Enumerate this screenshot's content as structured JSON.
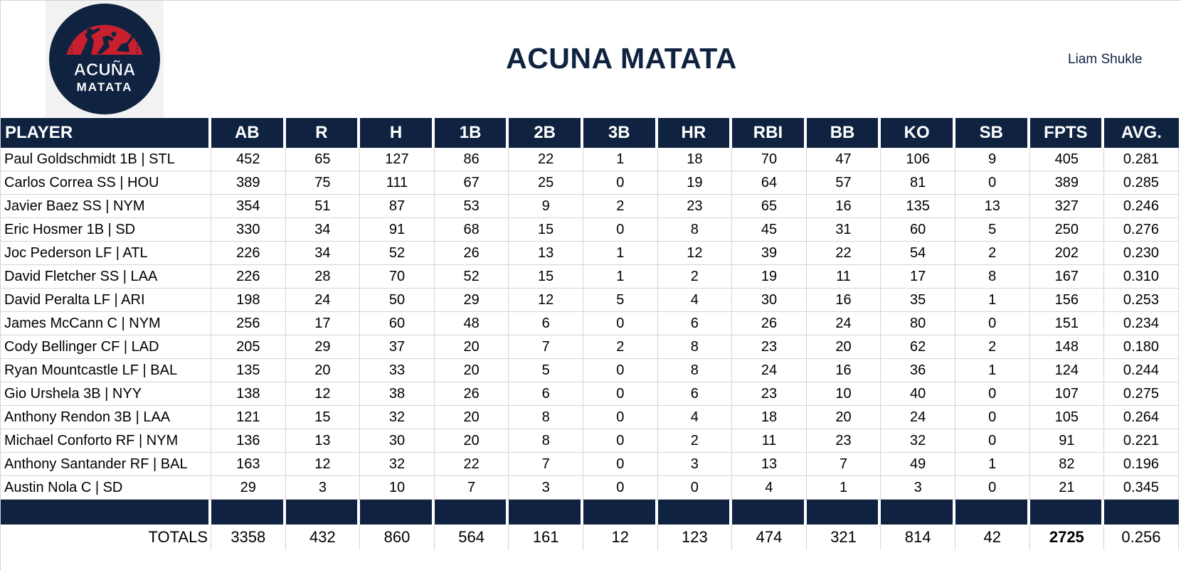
{
  "header": {
    "logo_text_line1": "ACUÑA",
    "logo_text_line2": "MATATA",
    "title": "ACUNA MATATA",
    "owner": "Liam Shukle"
  },
  "colors": {
    "navy": "#0f2340",
    "red": "#c8202f",
    "grid": "#d4d4d4"
  },
  "table": {
    "columns": [
      "PLAYER",
      "AB",
      "R",
      "H",
      "1B",
      "2B",
      "3B",
      "HR",
      "RBI",
      "BB",
      "KO",
      "SB",
      "FPTS",
      "AVG."
    ],
    "rows": [
      {
        "player": "Paul Goldschmidt 1B | STL",
        "AB": "452",
        "R": "65",
        "H": "127",
        "1B": "86",
        "2B": "22",
        "3B": "1",
        "HR": "18",
        "RBI": "70",
        "BB": "47",
        "KO": "106",
        "SB": "9",
        "FPTS": "405",
        "AVG": "0.281"
      },
      {
        "player": "Carlos Correa SS | HOU",
        "AB": "389",
        "R": "75",
        "H": "111",
        "1B": "67",
        "2B": "25",
        "3B": "0",
        "HR": "19",
        "RBI": "64",
        "BB": "57",
        "KO": "81",
        "SB": "0",
        "FPTS": "389",
        "AVG": "0.285"
      },
      {
        "player": "Javier Baez SS | NYM",
        "AB": "354",
        "R": "51",
        "H": "87",
        "1B": "53",
        "2B": "9",
        "3B": "2",
        "HR": "23",
        "RBI": "65",
        "BB": "16",
        "KO": "135",
        "SB": "13",
        "FPTS": "327",
        "AVG": "0.246"
      },
      {
        "player": "Eric Hosmer 1B | SD",
        "AB": "330",
        "R": "34",
        "H": "91",
        "1B": "68",
        "2B": "15",
        "3B": "0",
        "HR": "8",
        "RBI": "45",
        "BB": "31",
        "KO": "60",
        "SB": "5",
        "FPTS": "250",
        "AVG": "0.276"
      },
      {
        "player": "Joc Pederson LF | ATL",
        "AB": "226",
        "R": "34",
        "H": "52",
        "1B": "26",
        "2B": "13",
        "3B": "1",
        "HR": "12",
        "RBI": "39",
        "BB": "22",
        "KO": "54",
        "SB": "2",
        "FPTS": "202",
        "AVG": "0.230"
      },
      {
        "player": "David Fletcher SS | LAA",
        "AB": "226",
        "R": "28",
        "H": "70",
        "1B": "52",
        "2B": "15",
        "3B": "1",
        "HR": "2",
        "RBI": "19",
        "BB": "11",
        "KO": "17",
        "SB": "8",
        "FPTS": "167",
        "AVG": "0.310"
      },
      {
        "player": "David Peralta LF | ARI",
        "AB": "198",
        "R": "24",
        "H": "50",
        "1B": "29",
        "2B": "12",
        "3B": "5",
        "HR": "4",
        "RBI": "30",
        "BB": "16",
        "KO": "35",
        "SB": "1",
        "FPTS": "156",
        "AVG": "0.253"
      },
      {
        "player": "James McCann C | NYM",
        "AB": "256",
        "R": "17",
        "H": "60",
        "1B": "48",
        "2B": "6",
        "3B": "0",
        "HR": "6",
        "RBI": "26",
        "BB": "24",
        "KO": "80",
        "SB": "0",
        "FPTS": "151",
        "AVG": "0.234"
      },
      {
        "player": "Cody Bellinger CF | LAD",
        "AB": "205",
        "R": "29",
        "H": "37",
        "1B": "20",
        "2B": "7",
        "3B": "2",
        "HR": "8",
        "RBI": "23",
        "BB": "20",
        "KO": "62",
        "SB": "2",
        "FPTS": "148",
        "AVG": "0.180"
      },
      {
        "player": "Ryan Mountcastle LF | BAL",
        "AB": "135",
        "R": "20",
        "H": "33",
        "1B": "20",
        "2B": "5",
        "3B": "0",
        "HR": "8",
        "RBI": "24",
        "BB": "16",
        "KO": "36",
        "SB": "1",
        "FPTS": "124",
        "AVG": "0.244"
      },
      {
        "player": "Gio Urshela 3B | NYY",
        "AB": "138",
        "R": "12",
        "H": "38",
        "1B": "26",
        "2B": "6",
        "3B": "0",
        "HR": "6",
        "RBI": "23",
        "BB": "10",
        "KO": "40",
        "SB": "0",
        "FPTS": "107",
        "AVG": "0.275"
      },
      {
        "player": "Anthony Rendon 3B | LAA",
        "AB": "121",
        "R": "15",
        "H": "32",
        "1B": "20",
        "2B": "8",
        "3B": "0",
        "HR": "4",
        "RBI": "18",
        "BB": "20",
        "KO": "24",
        "SB": "0",
        "FPTS": "105",
        "AVG": "0.264"
      },
      {
        "player": "Michael Conforto RF | NYM",
        "AB": "136",
        "R": "13",
        "H": "30",
        "1B": "20",
        "2B": "8",
        "3B": "0",
        "HR": "2",
        "RBI": "11",
        "BB": "23",
        "KO": "32",
        "SB": "0",
        "FPTS": "91",
        "AVG": "0.221"
      },
      {
        "player": "Anthony Santander RF | BAL",
        "AB": "163",
        "R": "12",
        "H": "32",
        "1B": "22",
        "2B": "7",
        "3B": "0",
        "HR": "3",
        "RBI": "13",
        "BB": "7",
        "KO": "49",
        "SB": "1",
        "FPTS": "82",
        "AVG": "0.196"
      },
      {
        "player": "Austin Nola C | SD",
        "AB": "29",
        "R": "3",
        "H": "10",
        "1B": "7",
        "2B": "3",
        "3B": "0",
        "HR": "0",
        "RBI": "4",
        "BB": "1",
        "KO": "3",
        "SB": "0",
        "FPTS": "21",
        "AVG": "0.345"
      }
    ],
    "totals": {
      "label": "TOTALS",
      "AB": "3358",
      "R": "432",
      "H": "860",
      "1B": "564",
      "2B": "161",
      "3B": "12",
      "HR": "123",
      "RBI": "474",
      "BB": "321",
      "KO": "814",
      "SB": "42",
      "FPTS": "2725",
      "AVG": "0.256"
    }
  }
}
